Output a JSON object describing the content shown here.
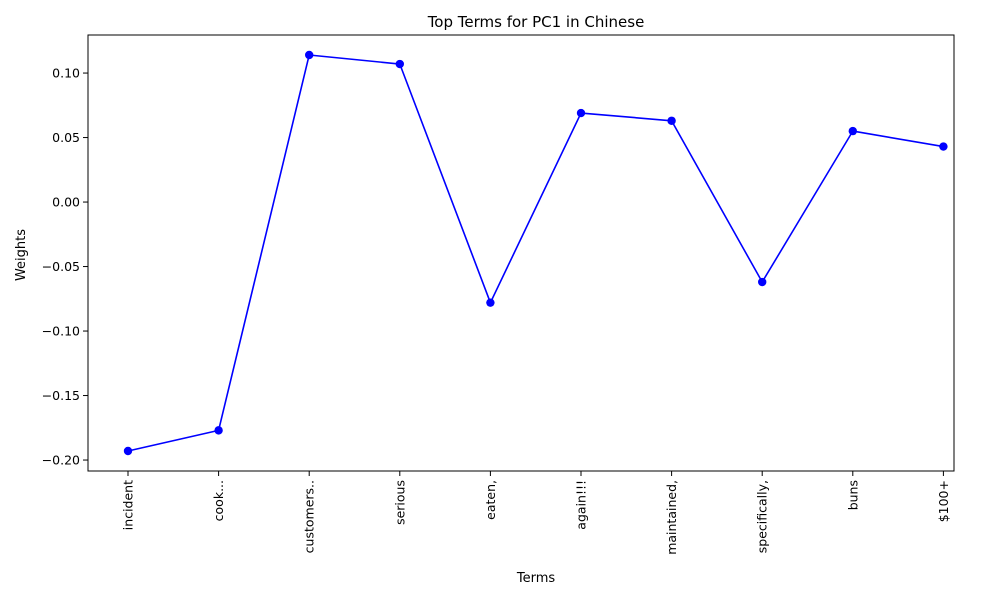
{
  "chart_data": {
    "type": "line",
    "title": "Top Terms for PC1 in Chinese",
    "xlabel": "Terms",
    "ylabel": "Weights",
    "categories": [
      "incident",
      "cook...",
      "customers..",
      "serious",
      "eaten,",
      "again!!!",
      "maintained,",
      "specifically,",
      "buns",
      "$100+"
    ],
    "series": [
      {
        "values": [
          -0.193,
          -0.177,
          0.114,
          0.107,
          -0.078,
          0.069,
          0.063,
          -0.062,
          0.055,
          0.043
        ],
        "color": "#0000ff",
        "marker": "circle"
      }
    ],
    "yticks": [
      -0.2,
      -0.15,
      -0.1,
      -0.05,
      0.0,
      0.05,
      0.1
    ],
    "ytick_labels": [
      "−0.20",
      "−0.15",
      "−0.10",
      "−0.05",
      "0.00",
      "0.05",
      "0.10"
    ],
    "ylim": [
      -0.2085,
      0.1295
    ],
    "grid": false,
    "legend": "none"
  }
}
